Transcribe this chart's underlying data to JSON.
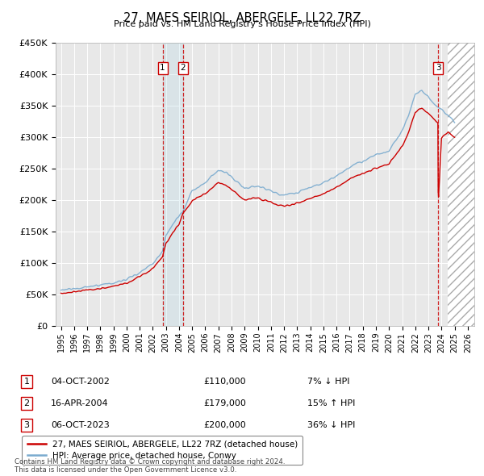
{
  "title": "27, MAES SEIRIOL, ABERGELE, LL22 7RZ",
  "subtitle": "Price paid vs. HM Land Registry's House Price Index (HPI)",
  "ylabel_ticks": [
    "£0",
    "£50K",
    "£100K",
    "£150K",
    "£200K",
    "£250K",
    "£300K",
    "£350K",
    "£400K",
    "£450K"
  ],
  "ytick_vals": [
    0,
    50000,
    100000,
    150000,
    200000,
    250000,
    300000,
    350000,
    400000,
    450000
  ],
  "ylim": [
    0,
    450000
  ],
  "xlim_start": 1994.6,
  "xlim_end": 2026.5,
  "transactions": [
    {
      "num": 1,
      "date": "04-OCT-2002",
      "x": 2002.75,
      "price": 110000,
      "label": "£110,000",
      "pct_label": "7% ↓ HPI"
    },
    {
      "num": 2,
      "date": "16-APR-2004",
      "x": 2004.29,
      "price": 179000,
      "label": "£179,000",
      "pct_label": "15% ↑ HPI"
    },
    {
      "num": 3,
      "date": "06-OCT-2023",
      "x": 2023.75,
      "price": 200000,
      "label": "£200,000",
      "pct_label": "36% ↓ HPI"
    }
  ],
  "legend_line1": "27, MAES SEIRIOL, ABERGELE, LL22 7RZ (detached house)",
  "legend_line2": "HPI: Average price, detached house, Conwy",
  "footnote": "Contains HM Land Registry data © Crown copyright and database right 2024.\nThis data is licensed under the Open Government Licence v3.0.",
  "future_shade_start": 2024.5,
  "red_color": "#cc0000",
  "blue_color": "#7aabcf",
  "bg_color": "#e8e8e8"
}
